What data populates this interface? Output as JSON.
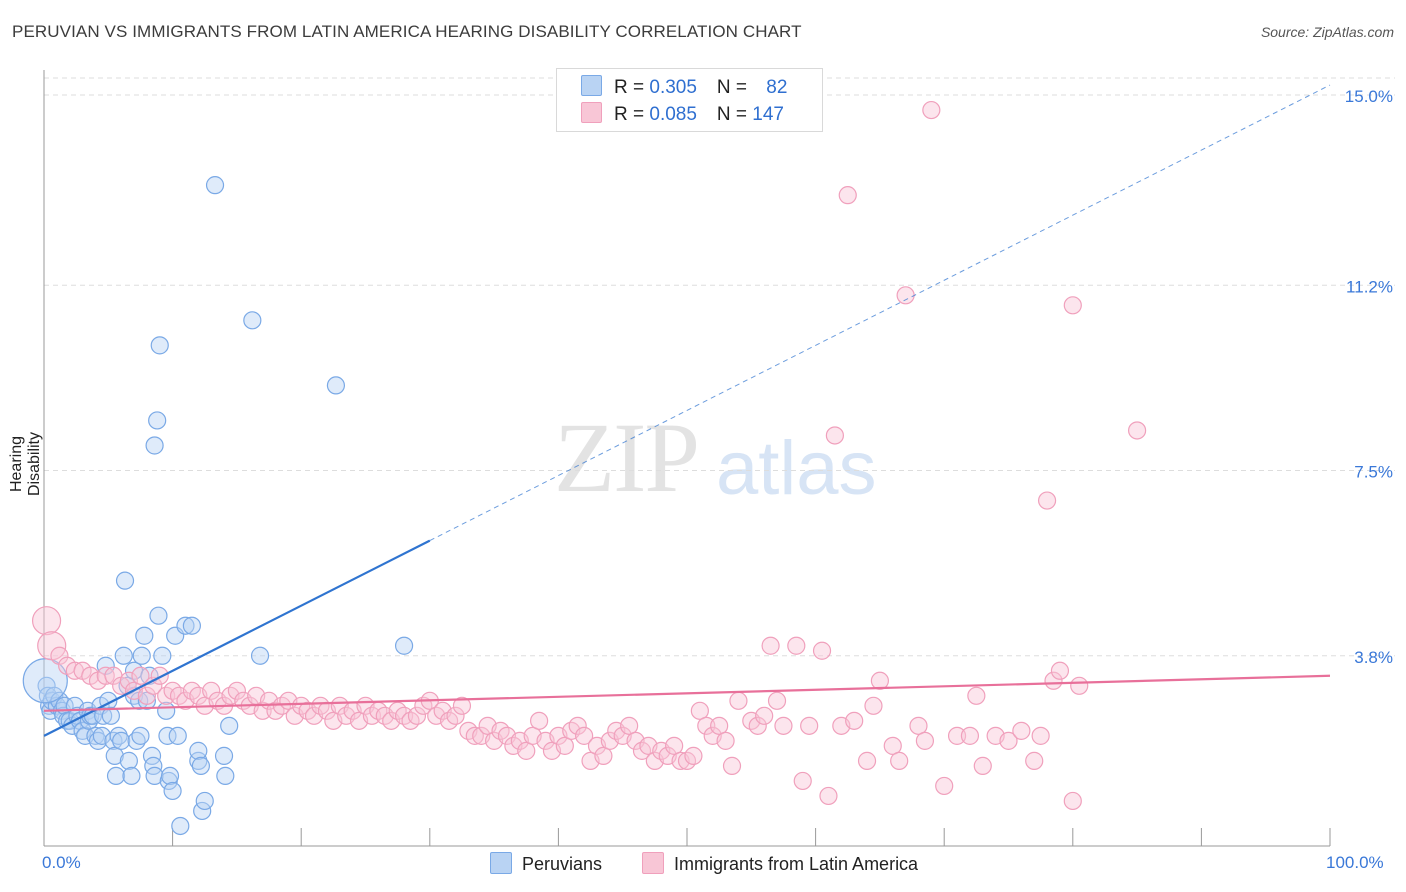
{
  "title": "PERUVIAN VS IMMIGRANTS FROM LATIN AMERICA HEARING DISABILITY CORRELATION CHART",
  "source": "Source: ZipAtlas.com",
  "watermark": {
    "zip": "ZIP",
    "atlas": "atlas"
  },
  "legend": {
    "rows": [
      {
        "r_label": "R = ",
        "r_value": "0.305",
        "n_label": "N = ",
        "n_value": "82"
      },
      {
        "r_label": "R = ",
        "r_value": "0.085",
        "n_label": "N = ",
        "n_value": "147"
      }
    ]
  },
  "chart_data": {
    "type": "scatter",
    "title": "PERUVIAN VS IMMIGRANTS FROM LATIN AMERICA HEARING DISABILITY CORRELATION CHART",
    "xlabel": "",
    "ylabel": "Hearing Disability",
    "xlim": [
      0,
      100
    ],
    "ylim": [
      0,
      15.5
    ],
    "x_tick_labels": [
      "0.0%",
      "100.0%"
    ],
    "y_ticks": [
      3.8,
      7.5,
      11.2,
      15.0
    ],
    "y_tick_labels": [
      "3.8%",
      "7.5%",
      "11.2%",
      "15.0%"
    ],
    "grid": true,
    "legend_position": "top-center",
    "colors": {
      "peruvians": "#7aa9e6",
      "immigrants": "#f0a0bc",
      "blue_line": "#2f74d0",
      "pink_line": "#e8709a"
    },
    "series": [
      {
        "name": "Peruvians",
        "r": 0.305,
        "n": 82,
        "trend": {
          "x0": 0,
          "y0": 2.2,
          "x1": 30,
          "y1": 6.1,
          "dashed_to_x": 100,
          "dashed_to_y": 15.2
        },
        "points": [
          [
            0.2,
            3.2
          ],
          [
            0.3,
            3.0
          ],
          [
            0.4,
            2.8
          ],
          [
            0.5,
            2.7
          ],
          [
            0.6,
            2.9
          ],
          [
            0.8,
            3.0
          ],
          [
            1.0,
            2.8
          ],
          [
            1.2,
            2.9
          ],
          [
            1.4,
            2.7
          ],
          [
            1.5,
            2.6
          ],
          [
            1.6,
            2.8
          ],
          [
            1.8,
            2.5
          ],
          [
            2.0,
            2.5
          ],
          [
            2.2,
            2.4
          ],
          [
            2.4,
            2.8
          ],
          [
            2.6,
            2.6
          ],
          [
            2.8,
            2.5
          ],
          [
            3.0,
            2.3
          ],
          [
            3.2,
            2.2
          ],
          [
            3.4,
            2.7
          ],
          [
            3.5,
            2.5
          ],
          [
            3.6,
            2.6
          ],
          [
            3.8,
            2.6
          ],
          [
            4.0,
            2.2
          ],
          [
            4.2,
            2.1
          ],
          [
            4.4,
            2.8
          ],
          [
            4.5,
            2.2
          ],
          [
            4.6,
            2.6
          ],
          [
            4.8,
            3.6
          ],
          [
            5.0,
            2.9
          ],
          [
            5.2,
            2.6
          ],
          [
            5.4,
            2.1
          ],
          [
            5.5,
            1.8
          ],
          [
            5.6,
            1.4
          ],
          [
            5.8,
            2.2
          ],
          [
            6.0,
            2.1
          ],
          [
            6.2,
            3.8
          ],
          [
            6.3,
            5.3
          ],
          [
            6.5,
            3.2
          ],
          [
            6.6,
            1.7
          ],
          [
            6.8,
            1.4
          ],
          [
            7.0,
            3.5
          ],
          [
            7.0,
            3.0
          ],
          [
            7.2,
            2.1
          ],
          [
            7.4,
            2.9
          ],
          [
            7.5,
            2.2
          ],
          [
            7.6,
            3.8
          ],
          [
            7.8,
            4.2
          ],
          [
            8.0,
            2.9
          ],
          [
            8.2,
            3.4
          ],
          [
            8.4,
            1.8
          ],
          [
            8.5,
            1.6
          ],
          [
            8.6,
            8.0
          ],
          [
            8.6,
            1.4
          ],
          [
            8.8,
            8.5
          ],
          [
            8.9,
            4.6
          ],
          [
            9.0,
            10.0
          ],
          [
            9.2,
            3.8
          ],
          [
            9.5,
            2.7
          ],
          [
            9.6,
            2.2
          ],
          [
            9.7,
            1.3
          ],
          [
            9.8,
            1.4
          ],
          [
            10.0,
            1.1
          ],
          [
            10.2,
            4.2
          ],
          [
            10.4,
            2.2
          ],
          [
            10.6,
            0.4
          ],
          [
            11.0,
            4.4
          ],
          [
            11.5,
            4.4
          ],
          [
            12.0,
            1.7
          ],
          [
            12.0,
            1.9
          ],
          [
            12.2,
            1.6
          ],
          [
            12.3,
            0.7
          ],
          [
            12.5,
            0.9
          ],
          [
            13.3,
            13.2
          ],
          [
            14.0,
            1.8
          ],
          [
            14.1,
            1.4
          ],
          [
            14.4,
            2.4
          ],
          [
            16.2,
            10.5
          ],
          [
            16.8,
            3.8
          ],
          [
            22.7,
            9.2
          ],
          [
            28.0,
            4.0
          ],
          [
            0.1,
            3.3
          ]
        ]
      },
      {
        "name": "Immigrants from Latin America",
        "r": 0.085,
        "n": 147,
        "trend": {
          "x0": 0,
          "y0": 2.7,
          "x1": 100,
          "y1": 3.4
        },
        "points": [
          [
            0.2,
            4.5
          ],
          [
            0.6,
            4.0
          ],
          [
            1.2,
            3.8
          ],
          [
            1.8,
            3.6
          ],
          [
            2.4,
            3.5
          ],
          [
            3.0,
            3.5
          ],
          [
            3.6,
            3.4
          ],
          [
            4.2,
            3.3
          ],
          [
            4.8,
            3.4
          ],
          [
            5.4,
            3.4
          ],
          [
            6.0,
            3.2
          ],
          [
            6.6,
            3.3
          ],
          [
            7.0,
            3.1
          ],
          [
            7.5,
            3.4
          ],
          [
            8.0,
            3.0
          ],
          [
            8.5,
            3.2
          ],
          [
            9.0,
            3.4
          ],
          [
            9.5,
            3.0
          ],
          [
            10.0,
            3.1
          ],
          [
            10.5,
            3.0
          ],
          [
            11.0,
            2.9
          ],
          [
            11.5,
            3.1
          ],
          [
            12.0,
            3.0
          ],
          [
            12.5,
            2.8
          ],
          [
            13.0,
            3.1
          ],
          [
            13.5,
            2.9
          ],
          [
            14.0,
            2.8
          ],
          [
            14.5,
            3.0
          ],
          [
            15.0,
            3.1
          ],
          [
            15.5,
            2.9
          ],
          [
            16.0,
            2.8
          ],
          [
            16.5,
            3.0
          ],
          [
            17.0,
            2.7
          ],
          [
            17.5,
            2.9
          ],
          [
            18.0,
            2.7
          ],
          [
            18.5,
            2.8
          ],
          [
            19.0,
            2.9
          ],
          [
            19.5,
            2.6
          ],
          [
            20.0,
            2.8
          ],
          [
            20.5,
            2.7
          ],
          [
            21.0,
            2.6
          ],
          [
            21.5,
            2.8
          ],
          [
            22.0,
            2.7
          ],
          [
            22.5,
            2.5
          ],
          [
            23.0,
            2.8
          ],
          [
            23.5,
            2.6
          ],
          [
            24.0,
            2.7
          ],
          [
            24.5,
            2.5
          ],
          [
            25.0,
            2.8
          ],
          [
            25.5,
            2.6
          ],
          [
            26.0,
            2.7
          ],
          [
            26.5,
            2.6
          ],
          [
            27.0,
            2.5
          ],
          [
            27.5,
            2.7
          ],
          [
            28.0,
            2.6
          ],
          [
            28.5,
            2.5
          ],
          [
            29.0,
            2.6
          ],
          [
            29.5,
            2.8
          ],
          [
            30.0,
            2.9
          ],
          [
            30.5,
            2.6
          ],
          [
            31.0,
            2.7
          ],
          [
            31.5,
            2.5
          ],
          [
            32.0,
            2.6
          ],
          [
            32.5,
            2.8
          ],
          [
            33.0,
            2.3
          ],
          [
            33.5,
            2.2
          ],
          [
            34.0,
            2.2
          ],
          [
            34.5,
            2.4
          ],
          [
            35.0,
            2.1
          ],
          [
            35.5,
            2.3
          ],
          [
            36.0,
            2.2
          ],
          [
            36.5,
            2.0
          ],
          [
            37.0,
            2.1
          ],
          [
            37.5,
            1.9
          ],
          [
            38.0,
            2.2
          ],
          [
            38.5,
            2.5
          ],
          [
            39.0,
            2.1
          ],
          [
            39.5,
            1.9
          ],
          [
            40.0,
            2.2
          ],
          [
            40.5,
            2.0
          ],
          [
            41.0,
            2.3
          ],
          [
            41.5,
            2.4
          ],
          [
            42.0,
            2.2
          ],
          [
            42.5,
            1.7
          ],
          [
            43.0,
            2.0
          ],
          [
            43.5,
            1.8
          ],
          [
            44.0,
            2.1
          ],
          [
            44.5,
            2.3
          ],
          [
            45.0,
            2.2
          ],
          [
            45.5,
            2.4
          ],
          [
            46.0,
            2.1
          ],
          [
            46.5,
            1.9
          ],
          [
            47.0,
            2.0
          ],
          [
            47.5,
            1.7
          ],
          [
            48.0,
            1.9
          ],
          [
            48.5,
            1.8
          ],
          [
            49.0,
            2.0
          ],
          [
            49.5,
            1.7
          ],
          [
            50.0,
            1.7
          ],
          [
            50.5,
            1.8
          ],
          [
            51.0,
            2.7
          ],
          [
            51.5,
            2.4
          ],
          [
            52.0,
            2.2
          ],
          [
            52.5,
            2.4
          ],
          [
            53.0,
            2.1
          ],
          [
            53.5,
            1.6
          ],
          [
            54.0,
            2.9
          ],
          [
            55.0,
            2.5
          ],
          [
            55.5,
            2.4
          ],
          [
            56.0,
            2.6
          ],
          [
            56.5,
            4.0
          ],
          [
            57.0,
            2.9
          ],
          [
            57.5,
            2.4
          ],
          [
            58.5,
            4.0
          ],
          [
            59.0,
            1.3
          ],
          [
            59.5,
            2.4
          ],
          [
            60.5,
            3.9
          ],
          [
            61.0,
            1.0
          ],
          [
            61.5,
            8.2
          ],
          [
            62.0,
            2.4
          ],
          [
            62.5,
            13.0
          ],
          [
            63.0,
            2.5
          ],
          [
            64.0,
            1.7
          ],
          [
            64.5,
            2.8
          ],
          [
            65.0,
            3.3
          ],
          [
            66.0,
            2.0
          ],
          [
            66.5,
            1.7
          ],
          [
            67.0,
            11.0
          ],
          [
            68.0,
            2.4
          ],
          [
            68.5,
            2.1
          ],
          [
            69.0,
            14.7
          ],
          [
            70.0,
            1.2
          ],
          [
            71.0,
            2.2
          ],
          [
            72.0,
            2.2
          ],
          [
            72.5,
            3.0
          ],
          [
            73.0,
            1.6
          ],
          [
            74.0,
            2.2
          ],
          [
            75.0,
            2.1
          ],
          [
            76.0,
            2.3
          ],
          [
            77.0,
            1.7
          ],
          [
            77.5,
            2.2
          ],
          [
            78.0,
            6.9
          ],
          [
            78.5,
            3.3
          ],
          [
            79.0,
            3.5
          ],
          [
            80.0,
            0.9
          ],
          [
            80.5,
            3.2
          ],
          [
            80.0,
            10.8
          ],
          [
            85.0,
            8.3
          ]
        ]
      }
    ]
  },
  "bottom_legend": [
    {
      "label": "Peruvians"
    },
    {
      "label": "Immigrants from Latin America"
    }
  ]
}
